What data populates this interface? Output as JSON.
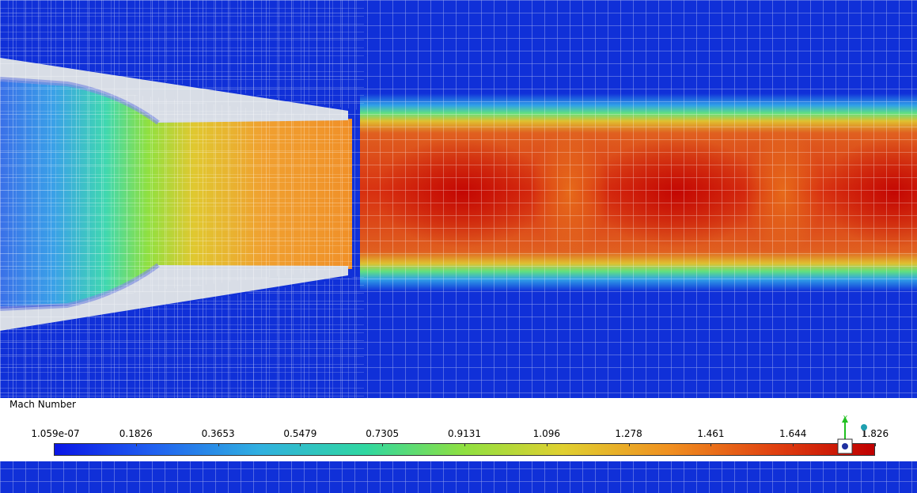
{
  "legend": {
    "title": "Mach Number",
    "ticks": [
      "1.059e-07",
      "0.1826",
      "0.3653",
      "0.5479",
      "0.7305",
      "0.9131",
      "1.096",
      "1.278",
      "1.461",
      "1.644",
      "1.826"
    ]
  },
  "triad": {
    "axis_label": "Y"
  },
  "colors": {
    "background": "#1030d8",
    "min": "#0a16e6",
    "max": "#c00000",
    "nozzle_wall": "#d8dde6"
  }
}
